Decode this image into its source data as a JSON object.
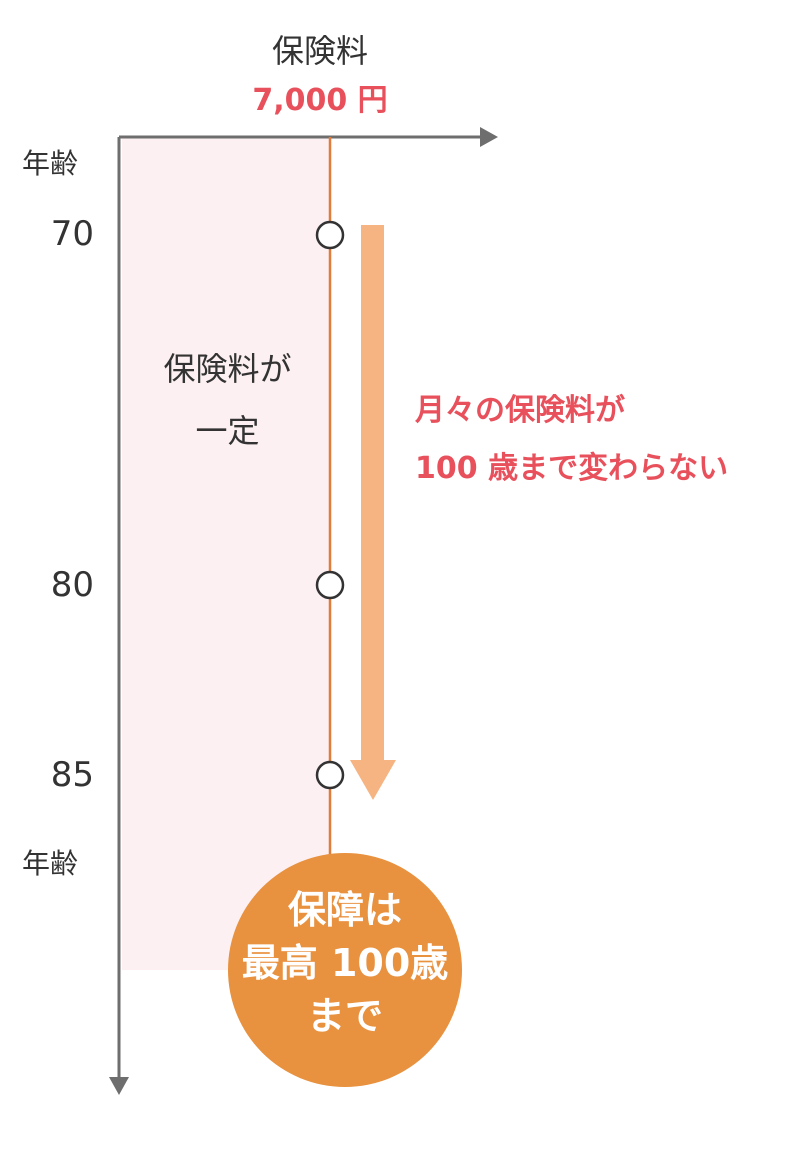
{
  "header": {
    "premium_title": "保険料",
    "premium_amount": "7,000 円"
  },
  "axis": {
    "top_label": "年齢",
    "bottom_label": "年齢",
    "ages": [
      "70",
      "80",
      "85"
    ]
  },
  "band_note": [
    "保険料が",
    "一定"
  ],
  "message": [
    "月々の保険料が",
    "100 歳まで変わらない"
  ],
  "badge": [
    "保障は",
    "最高 100歳",
    "まで"
  ],
  "colors": {
    "accent_red": "#e8505b",
    "orange_line": "#e07c3c",
    "orange_arrow": "#f5b482",
    "badge_orange": "#e8913e",
    "band_pink": "#fcf0f2",
    "axis_gray": "#6e6e6e"
  }
}
